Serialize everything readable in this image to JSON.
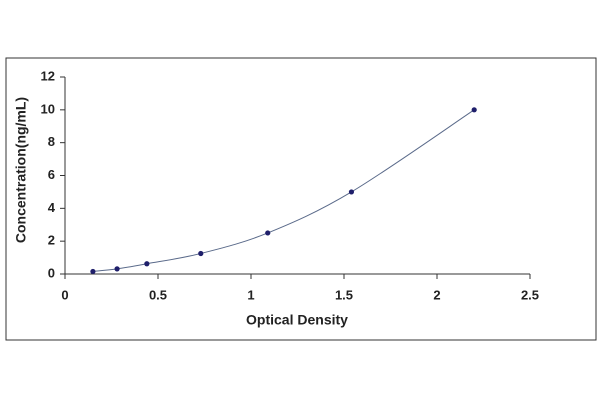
{
  "chart_data": {
    "type": "scatter",
    "x_label": "Optical Density",
    "y_label": "Concentration(ng/mL)",
    "series": [
      {
        "color": "#1f1f6b",
        "line_color": "#5a6a8a",
        "x": [
          0.15,
          0.28,
          0.44,
          0.73,
          1.09,
          1.54,
          2.2
        ],
        "values": [
          0.156,
          0.312,
          0.625,
          1.25,
          2.5,
          5,
          10
        ]
      }
    ],
    "xlim": [
      0,
      2.5
    ],
    "xticks": [
      0,
      0.5,
      1,
      1.5,
      2,
      2.5
    ],
    "ylim": [
      0,
      12
    ],
    "yticks": [
      0,
      2,
      4,
      6,
      8,
      10,
      12
    ],
    "grid": false
  }
}
